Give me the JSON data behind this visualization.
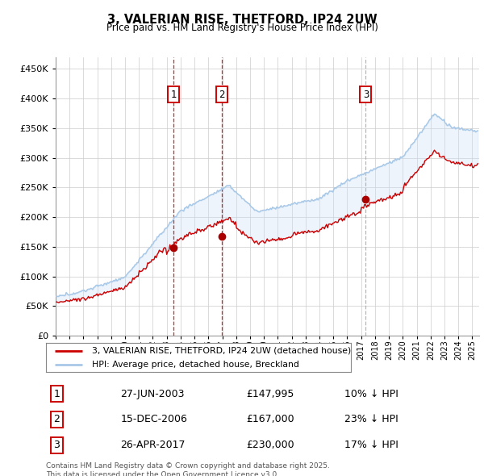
{
  "title": "3, VALERIAN RISE, THETFORD, IP24 2UW",
  "subtitle": "Price paid vs. HM Land Registry's House Price Index (HPI)",
  "ylim": [
    0,
    470000
  ],
  "yticks": [
    0,
    50000,
    100000,
    150000,
    200000,
    250000,
    300000,
    350000,
    400000,
    450000
  ],
  "xlim_start": 1995.0,
  "xlim_end": 2025.5,
  "hpi_color": "#a8c8e8",
  "price_color": "#cc0000",
  "sale_marker_color": "#aa0000",
  "vline_color_red": "#cc0000",
  "vline_color_grey": "#aaaaaa",
  "shade_color": "#cce0f5",
  "sales": [
    {
      "index": 1,
      "date_num": 2003.49,
      "price": 147995,
      "label": "1",
      "vline_style": "red"
    },
    {
      "index": 2,
      "date_num": 2006.96,
      "price": 167000,
      "label": "2",
      "vline_style": "red"
    },
    {
      "index": 3,
      "date_num": 2017.33,
      "price": 230000,
      "label": "3",
      "vline_style": "grey"
    }
  ],
  "table_rows": [
    {
      "num": "1",
      "date": "27-JUN-2003",
      "price": "£147,995",
      "hpi": "10% ↓ HPI"
    },
    {
      "num": "2",
      "date": "15-DEC-2006",
      "price": "£167,000",
      "hpi": "23% ↓ HPI"
    },
    {
      "num": "3",
      "date": "26-APR-2017",
      "price": "£230,000",
      "hpi": "17% ↓ HPI"
    }
  ],
  "legend_line1": "3, VALERIAN RISE, THETFORD, IP24 2UW (detached house)",
  "legend_line2": "HPI: Average price, detached house, Breckland",
  "footnote": "Contains HM Land Registry data © Crown copyright and database right 2025.\nThis data is licensed under the Open Government Licence v3.0."
}
